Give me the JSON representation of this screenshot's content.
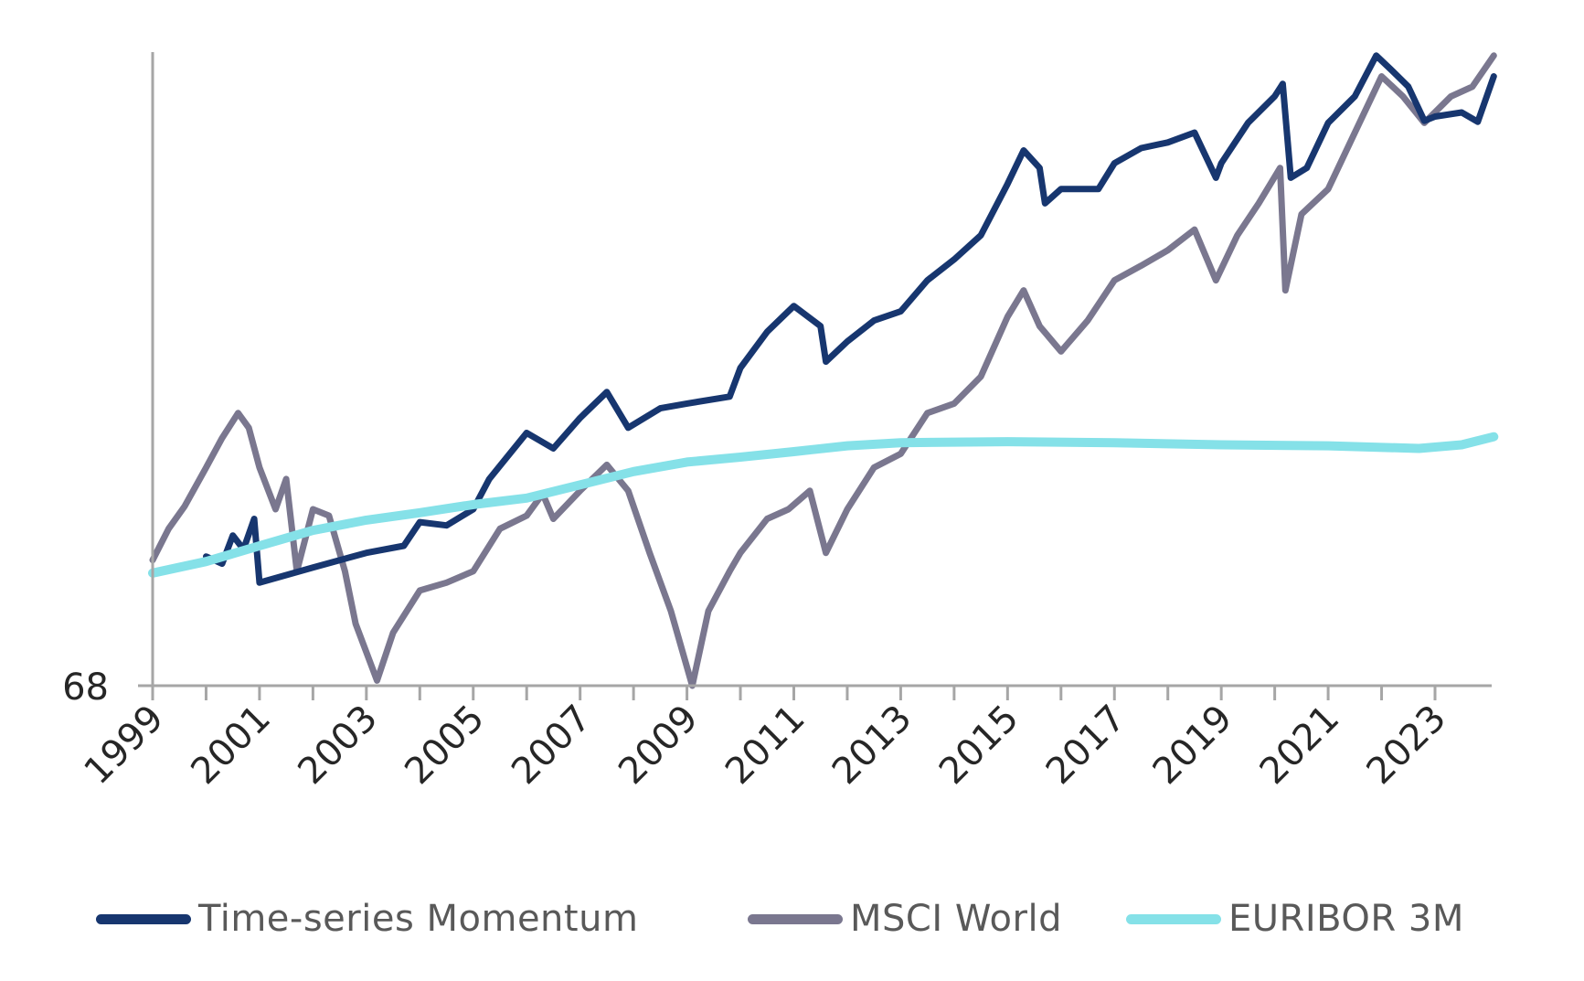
{
  "chart_data": {
    "type": "line",
    "title": "",
    "xlabel": "",
    "ylabel": "",
    "yscale": "log",
    "ylim": [
      68,
      408
    ],
    "xlim": [
      1999,
      2024.1
    ],
    "grid": false,
    "legend_position": "bottom",
    "y_tick_labels": [
      "68"
    ],
    "y_ticks": [
      68
    ],
    "x_tick_labels": [
      "1999",
      "2001",
      "2003",
      "2005",
      "2007",
      "2009",
      "2011",
      "2013",
      "2015",
      "2017",
      "2019",
      "2021",
      "2023"
    ],
    "x_ticks": [
      1999,
      2001,
      2003,
      2005,
      2007,
      2009,
      2011,
      2013,
      2015,
      2017,
      2019,
      2021,
      2023
    ],
    "x_minor_ticks": [
      2000,
      2002,
      2004,
      2006,
      2008,
      2010,
      2012,
      2014,
      2016,
      2018,
      2020,
      2022
    ],
    "series": [
      {
        "name": "Time-series Momentum",
        "color": "#17366f",
        "x": [
          2000.0,
          2000.3,
          2000.5,
          2000.7,
          2000.9,
          2001.0,
          2002.0,
          2003.0,
          2003.7,
          2004.0,
          2004.5,
          2005.0,
          2005.3,
          2006.0,
          2006.5,
          2007.0,
          2007.5,
          2007.9,
          2008.5,
          2009.0,
          2009.8,
          2010.0,
          2010.5,
          2011.0,
          2011.5,
          2011.6,
          2012.0,
          2012.5,
          2013.0,
          2013.5,
          2014.0,
          2014.5,
          2015.0,
          2015.3,
          2015.6,
          2015.7,
          2016.0,
          2016.7,
          2017.0,
          2017.5,
          2018.0,
          2018.5,
          2018.9,
          2019.0,
          2019.5,
          2020.0,
          2020.15,
          2020.3,
          2020.6,
          2021.0,
          2021.5,
          2021.9,
          2022.2,
          2022.5,
          2022.8,
          2023.0,
          2023.5,
          2023.8,
          2024.1
        ],
        "values": [
          98,
          96,
          104,
          100,
          109,
          91,
          95,
          99,
          101,
          108,
          107,
          112,
          122,
          139,
          133,
          145,
          156,
          141,
          149,
          151,
          154,
          167,
          185,
          199,
          188,
          170,
          180,
          191,
          196,
          214,
          227,
          243,
          281,
          309,
          294,
          266,
          277,
          277,
          298,
          311,
          316,
          325,
          286,
          298,
          334,
          360,
          373,
          286,
          294,
          334,
          360,
          404,
          387,
          370,
          336,
          340,
          344,
          335,
          381
        ]
      },
      {
        "name": "MSCI World",
        "color": "#7a778f",
        "x": [
          1999.0,
          1999.3,
          1999.6,
          2000.0,
          2000.3,
          2000.6,
          2000.8,
          2001.0,
          2001.3,
          2001.5,
          2001.7,
          2002.0,
          2002.3,
          2002.6,
          2002.8,
          2003.2,
          2003.5,
          2004.0,
          2004.5,
          2005.0,
          2005.5,
          2006.0,
          2006.3,
          2006.5,
          2007.0,
          2007.5,
          2007.9,
          2008.3,
          2008.7,
          2009.1,
          2009.4,
          2009.8,
          2010.0,
          2010.5,
          2010.9,
          2011.3,
          2011.6,
          2012.0,
          2012.5,
          2013.0,
          2013.5,
          2014.0,
          2014.5,
          2015.0,
          2015.3,
          2015.6,
          2016.0,
          2016.5,
          2017.0,
          2017.5,
          2018.0,
          2018.5,
          2018.9,
          2019.3,
          2019.7,
          2020.1,
          2020.2,
          2020.5,
          2021.0,
          2021.5,
          2022.0,
          2022.4,
          2022.8,
          2023.3,
          2023.7,
          2024.1
        ],
        "values": [
          97,
          106,
          113,
          126,
          137,
          147,
          141,
          126,
          112,
          122,
          94,
          112,
          110,
          94,
          81,
          69,
          79,
          89,
          91,
          94,
          106,
          110,
          117,
          109,
          118,
          127,
          118,
          99,
          84,
          68,
          84,
          94,
          99,
          109,
          112,
          118,
          99,
          112,
          126,
          131,
          147,
          151,
          163,
          193,
          208,
          188,
          175,
          191,
          214,
          223,
          233,
          247,
          214,
          243,
          266,
          294,
          208,
          258,
          277,
          325,
          381,
          360,
          334,
          360,
          370,
          404
        ]
      },
      {
        "name": "EURIBOR 3M",
        "color": "#85e1e8",
        "x": [
          1999.0,
          2000.0,
          2001.0,
          2002.0,
          2003.0,
          2004.0,
          2005.0,
          2006.0,
          2007.0,
          2008.0,
          2009.0,
          2010.0,
          2011.0,
          2012.0,
          2013.0,
          2015.0,
          2017.0,
          2019.0,
          2021.0,
          2022.7,
          2023.5,
          2024.1
        ],
        "values": [
          93.5,
          96.6,
          101,
          105.5,
          108.6,
          110.9,
          113.5,
          115.6,
          120,
          124.6,
          128,
          129.8,
          131.8,
          134,
          135.2,
          135.6,
          135.2,
          134.4,
          134,
          133,
          134.4,
          137.5
        ]
      }
    ]
  }
}
